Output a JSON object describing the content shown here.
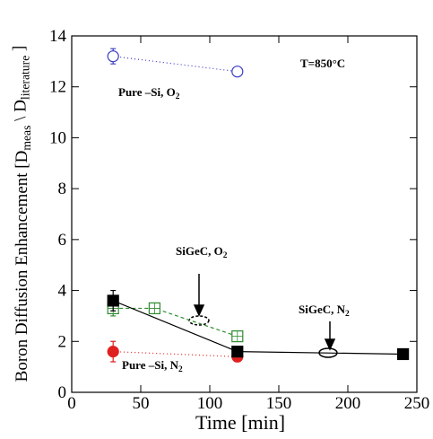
{
  "chart_data": {
    "type": "line",
    "x_label": "Time [min]",
    "y_label": [
      {
        "text": "Boron Diffusion Enhancement [D"
      },
      {
        "sub": "meas"
      },
      {
        "text": " \\ D"
      },
      {
        "sub": "literature"
      },
      {
        "text": " ]"
      }
    ],
    "annotations": [
      [
        {
          "text": "T=850°C"
        }
      ],
      [
        {
          "text": "Pure –Si, O"
        },
        {
          "sub": "2"
        }
      ],
      [
        {
          "text": "SiGeC, O"
        },
        {
          "sub": "2"
        }
      ],
      [
        {
          "text": "SiGeC, N"
        },
        {
          "sub": "2"
        }
      ],
      [
        {
          "text": "Pure –Si, N"
        },
        {
          "sub": "2"
        }
      ]
    ],
    "xlim": [
      0,
      250
    ],
    "xticks": [
      0,
      50,
      100,
      150,
      200,
      250
    ],
    "ylim": [
      0,
      14
    ],
    "yticks": [
      0,
      2,
      4,
      6,
      8,
      10,
      12,
      14
    ],
    "series": [
      {
        "name": "Pure –Si, O2",
        "color": "#3b3bc4",
        "marker": "circle",
        "filled": false,
        "dash": "dotted",
        "x": [
          30,
          120
        ],
        "values": [
          13.2,
          12.6
        ],
        "errors": [
          0.3,
          0.1
        ]
      },
      {
        "name": "SiGeC, O2",
        "color": "#2e8b2e",
        "marker": "square",
        "filled": false,
        "dash": "dashed",
        "x": [
          30,
          60,
          120
        ],
        "values": [
          3.3,
          3.3,
          2.2
        ],
        "errors": [
          0.3,
          null,
          null
        ]
      },
      {
        "name": "Pure –Si, N2",
        "color": "#e02020",
        "marker": "circle",
        "filled": true,
        "dash": "dotted",
        "x": [
          30,
          120
        ],
        "values": [
          1.6,
          1.4
        ],
        "errors": [
          0.4,
          null
        ]
      },
      {
        "name": "SiGeC, N2",
        "color": "#000000",
        "marker": "square",
        "filled": true,
        "dash": "solid",
        "x": [
          30,
          120,
          240
        ],
        "values": [
          3.6,
          1.6,
          1.5
        ],
        "errors": [
          0.4,
          null,
          null
        ]
      }
    ]
  }
}
